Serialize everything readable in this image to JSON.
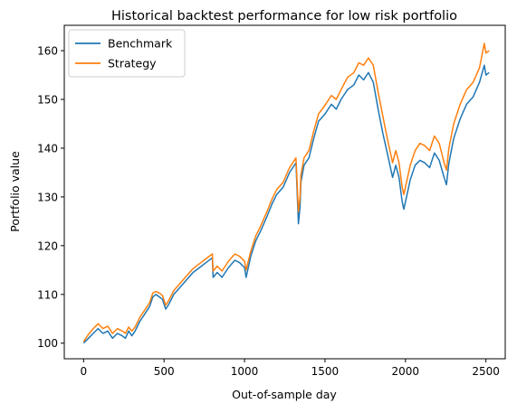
{
  "chart_data": {
    "type": "line",
    "title": "Historical backtest performance for low risk portfolio",
    "xlabel": "Out-of-sample day",
    "ylabel": "Portfolio value",
    "xlim": [
      -120,
      2620
    ],
    "ylim": [
      96.8,
      165.2
    ],
    "xticks": [
      0,
      500,
      1000,
      1500,
      2000,
      2500
    ],
    "yticks": [
      100,
      110,
      120,
      130,
      140,
      150,
      160
    ],
    "grid": false,
    "legend_position": "top-left",
    "colors": {
      "Benchmark": "#1f77b4",
      "Strategy": "#ff7f0e"
    },
    "series": [
      {
        "name": "Benchmark",
        "x": [
          0,
          30,
          60,
          90,
          120,
          150,
          180,
          210,
          240,
          260,
          280,
          300,
          320,
          350,
          380,
          410,
          430,
          450,
          470,
          490,
          510,
          530,
          560,
          600,
          640,
          680,
          720,
          760,
          800,
          805,
          830,
          860,
          900,
          940,
          970,
          1000,
          1010,
          1040,
          1070,
          1100,
          1140,
          1170,
          1200,
          1240,
          1280,
          1320,
          1335,
          1345,
          1350,
          1370,
          1400,
          1430,
          1460,
          1500,
          1540,
          1570,
          1600,
          1640,
          1680,
          1710,
          1740,
          1770,
          1800,
          1830,
          1860,
          1890,
          1920,
          1940,
          1960,
          1980,
          1990,
          2000,
          2030,
          2060,
          2090,
          2120,
          2150,
          2180,
          2210,
          2240,
          2255,
          2270,
          2300,
          2340,
          2380,
          2420,
          2460,
          2490,
          2500,
          2520
        ],
        "values": [
          100,
          101,
          102,
          103,
          102,
          102.5,
          101,
          102,
          101.5,
          101,
          102.5,
          101.5,
          102.5,
          104.5,
          106,
          107.5,
          109.5,
          110,
          109.5,
          109,
          107,
          108,
          110,
          111.5,
          113,
          114.5,
          115.5,
          116.5,
          117.5,
          113.5,
          114.5,
          113.5,
          115.5,
          117,
          116.5,
          115.5,
          113.5,
          118,
          121,
          123,
          126,
          128.5,
          130.5,
          132,
          135,
          137,
          124.5,
          128,
          133,
          136.5,
          138,
          142,
          145.5,
          147,
          149,
          148,
          150,
          152,
          153,
          155,
          154,
          155.5,
          153.5,
          148,
          143,
          138.5,
          134,
          136.5,
          134,
          129,
          127.5,
          129,
          133.5,
          136.5,
          137.5,
          137,
          136,
          139,
          137.5,
          134,
          132.5,
          137,
          142,
          146,
          149,
          150.5,
          153.5,
          157,
          155,
          155.5
        ]
      },
      {
        "name": "Strategy",
        "x": [
          0,
          30,
          60,
          90,
          120,
          150,
          180,
          210,
          240,
          260,
          280,
          300,
          320,
          350,
          380,
          410,
          430,
          450,
          470,
          490,
          510,
          530,
          560,
          600,
          640,
          680,
          720,
          760,
          800,
          805,
          830,
          860,
          900,
          940,
          970,
          1000,
          1010,
          1040,
          1070,
          1100,
          1140,
          1170,
          1200,
          1240,
          1280,
          1320,
          1335,
          1345,
          1350,
          1370,
          1400,
          1430,
          1460,
          1500,
          1540,
          1570,
          1600,
          1640,
          1680,
          1710,
          1740,
          1770,
          1800,
          1830,
          1860,
          1890,
          1920,
          1940,
          1960,
          1980,
          1990,
          2000,
          2030,
          2060,
          2090,
          2120,
          2150,
          2180,
          2210,
          2240,
          2255,
          2270,
          2300,
          2340,
          2380,
          2420,
          2460,
          2490,
          2500,
          2520
        ],
        "values": [
          100.3,
          101.8,
          103,
          104,
          103,
          103.5,
          102,
          103,
          102.5,
          102,
          103.3,
          102.5,
          103.3,
          105.3,
          106.8,
          108.3,
          110.3,
          110.6,
          110.3,
          109.8,
          107.8,
          108.8,
          110.8,
          112.3,
          113.8,
          115.3,
          116.3,
          117.3,
          118.3,
          114.8,
          115.8,
          114.8,
          116.8,
          118.3,
          117.8,
          116.8,
          115,
          119,
          122,
          124,
          127,
          129.5,
          131.5,
          133,
          136,
          138,
          127,
          130,
          134.5,
          138,
          139.5,
          143.5,
          147,
          148.8,
          150.8,
          150,
          152,
          154.5,
          155.5,
          157.5,
          157,
          158.5,
          157,
          151.5,
          146.5,
          141.5,
          137,
          139.5,
          137,
          132,
          130.5,
          132,
          136.5,
          139.5,
          141,
          140.5,
          139.5,
          142.5,
          141,
          137,
          135.5,
          140,
          145,
          149,
          152,
          153.5,
          156.5,
          161.5,
          159.5,
          160
        ]
      }
    ]
  }
}
